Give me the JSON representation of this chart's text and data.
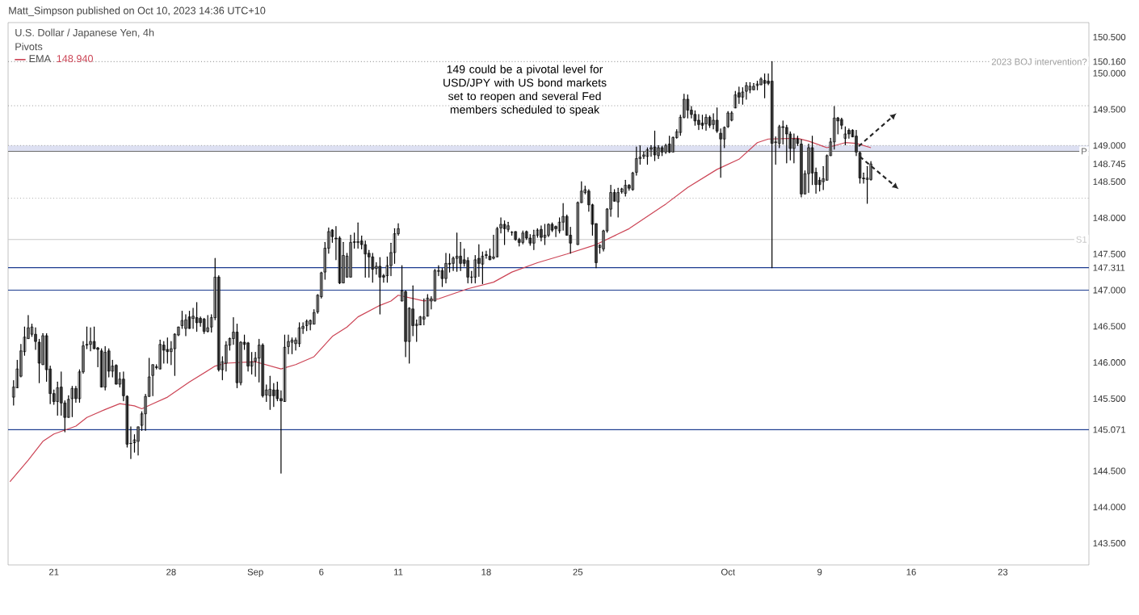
{
  "chart_data": {
    "type": "candlestick",
    "title": "U.S. Dollar / Japanese Yen, 4h",
    "subtitle": "Pivots",
    "annotations": [
      "Matt_Simpson published on Oct 10, 2023 14:36 UTC+10",
      "148.940",
      "149 could be a pivotal level for USD/JPY with US bond markets set to reopen and several Fed members scheduled to speak"
    ],
    "categories": [
      null,
      null,
      null,
      null,
      null,
      null,
      null,
      null,
      null,
      null,
      null,
      null,
      "21",
      null,
      null,
      null,
      null,
      null,
      null,
      null,
      null,
      null,
      null,
      null,
      null,
      null,
      null,
      null,
      null,
      null,
      null,
      null,
      null,
      null,
      null,
      null,
      null,
      null,
      null,
      null,
      null,
      null,
      null,
      null,
      "28",
      null,
      null,
      null,
      null,
      null,
      null,
      null,
      null,
      null,
      null,
      null,
      null,
      null,
      null,
      null,
      null,
      null,
      null,
      null,
      null,
      null,
      null,
      "Sep",
      null,
      null,
      null,
      null,
      null,
      null,
      null,
      null,
      null,
      null,
      null,
      null,
      null,
      null,
      null,
      null,
      null,
      "6",
      null,
      null,
      null,
      null,
      null,
      null,
      null,
      null,
      null,
      null,
      null,
      null,
      null,
      null,
      null,
      null,
      null,
      null,
      null,
      null,
      "11",
      null,
      null,
      null,
      null,
      null,
      null,
      null,
      null,
      null,
      null,
      null,
      null,
      null,
      null,
      null,
      null,
      null,
      null,
      null,
      null,
      null,
      null,
      null,
      "18",
      null,
      null,
      null,
      null,
      null,
      null,
      null,
      null,
      null,
      null,
      null,
      null,
      null,
      null,
      null,
      null,
      null,
      null,
      null,
      null,
      null,
      null,
      null,
      null,
      "25",
      null,
      null,
      null,
      null,
      null,
      null,
      null,
      null,
      null,
      null,
      null,
      null,
      null,
      null,
      null,
      null,
      null,
      null,
      null,
      null,
      null,
      null,
      null,
      null,
      null,
      null,
      null,
      null,
      null,
      null,
      null,
      null,
      null,
      null,
      null,
      null,
      null,
      null,
      null,
      null,
      "Oct",
      null,
      null,
      null,
      null,
      null,
      null,
      null,
      null,
      null,
      null,
      null,
      null,
      null,
      null,
      null,
      null,
      null,
      null,
      null,
      null,
      null,
      null,
      null,
      null,
      "9",
      null,
      null,
      null,
      null,
      null,
      null,
      null,
      null,
      null,
      null,
      null,
      null,
      null,
      null,
      null,
      null,
      null,
      null,
      null,
      null,
      null,
      null,
      null,
      null,
      "16",
      null,
      null,
      null,
      null,
      null,
      null,
      null,
      null,
      null,
      null,
      null,
      null,
      null,
      null,
      null,
      null,
      null,
      null,
      null,
      null,
      null,
      null,
      null,
      null,
      "23",
      null,
      null,
      null,
      null,
      null,
      null,
      null,
      null,
      null,
      null,
      null,
      null,
      null,
      null,
      null,
      null,
      null,
      null,
      null,
      null,
      null,
      null,
      null
    ],
    "ohlc": [
      null,
      [
        145.52,
        145.75,
        145.41,
        145.66
      ],
      [
        145.65,
        146.03,
        145.65,
        145.91
      ],
      [
        145.81,
        146.25,
        145.8,
        146.16
      ],
      [
        146.15,
        146.49,
        146.1,
        146.35
      ],
      [
        146.33,
        146.65,
        146.33,
        146.48
      ],
      [
        146.39,
        146.53,
        146.36,
        146.49
      ],
      [
        146.39,
        146.48,
        146.18,
        146.29
      ],
      [
        146.28,
        146.32,
        145.72,
        145.99
      ],
      [
        145.97,
        146.4,
        145.97,
        146.37
      ],
      [
        146.37,
        146.4,
        145.74,
        145.9
      ],
      [
        145.91,
        145.95,
        145.43,
        145.57
      ],
      [
        145.57,
        145.62,
        145.42,
        145.46
      ],
      [
        145.46,
        145.73,
        145.27,
        145.65
      ],
      [
        145.66,
        145.87,
        145.27,
        145.44
      ],
      [
        145.44,
        145.47,
        145.04,
        145.24
      ],
      [
        145.24,
        145.54,
        145.24,
        145.49
      ],
      [
        145.5,
        145.67,
        145.25,
        145.64
      ],
      [
        145.64,
        145.67,
        145.45,
        145.5
      ],
      [
        145.5,
        145.9,
        145.45,
        145.87
      ],
      [
        145.87,
        146.29,
        145.85,
        146.23
      ],
      [
        146.24,
        146.49,
        146.19,
        146.25
      ],
      [
        146.25,
        146.48,
        146.16,
        146.29
      ],
      [
        146.29,
        146.49,
        146.19,
        146.19
      ],
      [
        146.2,
        146.21,
        145.94,
        146.18
      ],
      [
        146.16,
        146.19,
        145.66,
        145.66
      ],
      [
        145.66,
        146.22,
        145.62,
        146.14
      ],
      [
        146.16,
        146.19,
        145.8,
        145.88
      ],
      [
        145.88,
        146.03,
        145.8,
        145.95
      ],
      [
        145.96,
        145.97,
        145.7,
        145.7
      ],
      [
        145.7,
        145.86,
        145.66,
        145.77
      ],
      [
        145.77,
        145.87,
        145.47,
        145.54
      ],
      [
        145.53,
        145.54,
        144.83,
        144.87
      ],
      [
        144.88,
        145.11,
        144.67,
        144.88
      ],
      [
        144.89,
        145.0,
        144.76,
        144.93
      ],
      [
        144.91,
        145.11,
        144.72,
        145.11
      ],
      [
        145.13,
        145.32,
        145.06,
        145.29
      ],
      [
        145.29,
        145.56,
        145.06,
        145.53
      ],
      [
        145.53,
        146.06,
        145.53,
        145.8
      ],
      [
        145.82,
        145.97,
        145.54,
        145.97
      ],
      [
        145.94,
        145.97,
        145.91,
        145.93
      ],
      [
        145.91,
        146.31,
        145.91,
        146.25
      ],
      [
        146.24,
        146.29,
        145.99,
        146.17
      ],
      [
        146.18,
        146.34,
        145.99,
        146.15
      ],
      [
        146.15,
        146.29,
        145.97,
        146.19
      ],
      [
        146.19,
        146.4,
        145.82,
        146.39
      ],
      [
        146.38,
        146.49,
        146.37,
        146.49
      ],
      [
        146.51,
        146.71,
        146.47,
        146.58
      ],
      [
        146.47,
        146.66,
        146.37,
        146.59
      ],
      [
        146.63,
        146.71,
        146.47,
        146.47
      ],
      [
        146.61,
        146.75,
        146.47,
        146.64
      ],
      [
        146.62,
        146.83,
        146.43,
        146.55
      ],
      [
        146.61,
        146.63,
        146.5,
        146.55
      ],
      [
        146.6,
        146.61,
        146.4,
        146.43
      ],
      [
        146.43,
        146.65,
        146.42,
        146.48
      ],
      [
        146.49,
        146.66,
        146.42,
        146.62
      ],
      [
        146.62,
        147.44,
        146.59,
        147.18
      ],
      [
        147.18,
        147.2,
        145.88,
        145.9
      ],
      [
        145.9,
        146.08,
        145.76,
        146.01
      ],
      [
        145.99,
        146.29,
        145.88,
        146.24
      ],
      [
        146.24,
        146.34,
        146.17,
        146.33
      ],
      [
        146.33,
        146.62,
        146.25,
        146.42
      ],
      [
        146.42,
        146.53,
        145.65,
        145.72
      ],
      [
        145.72,
        146.29,
        145.69,
        146.28
      ],
      [
        146.28,
        146.38,
        146.18,
        146.25
      ],
      [
        146.27,
        146.28,
        145.88,
        145.95
      ],
      [
        145.95,
        146.14,
        145.84,
        146.01
      ],
      [
        146.02,
        146.14,
        145.81,
        146.06
      ],
      [
        146.06,
        146.32,
        145.73,
        146.24
      ],
      [
        146.24,
        146.26,
        145.52,
        145.54
      ],
      [
        145.55,
        145.69,
        145.46,
        145.62
      ],
      [
        145.54,
        145.81,
        145.35,
        145.63
      ],
      [
        145.62,
        145.71,
        145.39,
        145.54
      ],
      [
        145.62,
        145.73,
        145.47,
        145.5
      ],
      [
        145.5,
        145.61,
        144.47,
        145.47
      ],
      [
        145.46,
        146.38,
        145.46,
        146.21
      ],
      [
        146.22,
        146.38,
        146.12,
        146.29
      ],
      [
        146.28,
        146.34,
        146.12,
        146.31
      ],
      [
        146.26,
        146.34,
        146.17,
        146.31
      ],
      [
        146.26,
        146.55,
        146.22,
        146.48
      ],
      [
        146.47,
        146.55,
        146.4,
        146.5
      ],
      [
        146.51,
        146.59,
        146.44,
        146.57
      ],
      [
        146.53,
        146.59,
        146.45,
        146.58
      ],
      [
        146.53,
        146.73,
        146.53,
        146.69
      ],
      [
        146.7,
        146.94,
        146.68,
        146.93
      ],
      [
        146.91,
        147.25,
        146.89,
        147.24
      ],
      [
        147.25,
        147.66,
        147.15,
        147.58
      ],
      [
        147.58,
        147.86,
        147.51,
        147.81
      ],
      [
        147.83,
        147.84,
        147.66,
        147.74
      ],
      [
        147.72,
        147.88,
        147.42,
        147.71
      ],
      [
        147.72,
        147.74,
        147.09,
        147.1
      ],
      [
        147.1,
        147.66,
        147.1,
        147.48
      ],
      [
        147.18,
        147.51,
        147.18,
        147.47
      ],
      [
        147.18,
        147.76,
        147.18,
        147.66
      ],
      [
        147.66,
        147.79,
        147.58,
        147.67
      ],
      [
        147.66,
        147.93,
        147.58,
        147.67
      ],
      [
        147.68,
        147.75,
        147.57,
        147.63
      ],
      [
        147.63,
        147.68,
        147.18,
        147.5
      ],
      [
        147.51,
        147.55,
        147.18,
        147.46
      ],
      [
        147.46,
        147.51,
        147.11,
        147.29
      ],
      [
        147.3,
        147.38,
        147.22,
        147.33
      ],
      [
        147.33,
        147.45,
        146.67,
        147.18
      ],
      [
        147.2,
        147.22,
        147.11,
        147.18
      ],
      [
        147.2,
        147.46,
        147.11,
        147.34
      ],
      [
        147.34,
        147.65,
        147.2,
        147.52
      ],
      [
        147.52,
        147.85,
        147.37,
        147.78
      ],
      [
        147.78,
        147.92,
        147.76,
        147.85
      ],
      [
        146.85,
        147.34,
        146.85,
        146.99
      ],
      [
        146.98,
        146.99,
        146.08,
        146.29
      ],
      [
        146.29,
        146.76,
        145.99,
        146.75
      ],
      [
        146.74,
        147.06,
        146.37,
        146.51
      ],
      [
        146.51,
        146.59,
        146.29,
        146.53
      ],
      [
        146.52,
        146.64,
        146.52,
        146.63
      ],
      [
        146.6,
        146.88,
        146.52,
        146.63
      ],
      [
        146.64,
        146.94,
        146.64,
        146.89
      ],
      [
        146.85,
        146.91,
        146.74,
        146.88
      ],
      [
        146.85,
        147.29,
        146.85,
        147.27
      ],
      [
        147.26,
        147.34,
        147.2,
        147.27
      ],
      [
        147.27,
        147.3,
        147.05,
        147.16
      ],
      [
        147.16,
        147.51,
        147.1,
        147.37
      ],
      [
        147.37,
        147.5,
        147.25,
        147.36
      ],
      [
        147.37,
        147.46,
        147.27,
        147.44
      ],
      [
        147.44,
        147.79,
        147.26,
        147.47
      ],
      [
        147.47,
        147.66,
        147.27,
        147.37
      ],
      [
        147.42,
        147.57,
        147.33,
        147.37
      ],
      [
        147.41,
        147.45,
        147.1,
        147.18
      ],
      [
        147.18,
        147.26,
        147.1,
        147.18
      ],
      [
        147.18,
        147.48,
        147.1,
        147.42
      ],
      [
        147.44,
        147.63,
        147.19,
        147.37
      ],
      [
        147.36,
        147.53,
        147.09,
        147.47
      ],
      [
        147.49,
        147.54,
        147.44,
        147.48
      ],
      [
        147.47,
        147.57,
        147.42,
        147.42
      ],
      [
        147.44,
        147.76,
        147.43,
        147.46
      ],
      [
        147.46,
        147.87,
        147.46,
        147.85
      ],
      [
        147.86,
        148.0,
        147.79,
        147.91
      ],
      [
        147.91,
        147.96,
        147.63,
        147.85
      ],
      [
        147.84,
        147.94,
        147.81,
        147.89
      ],
      [
        147.8,
        147.81,
        147.76,
        147.8
      ],
      [
        147.81,
        147.81,
        147.69,
        147.7
      ],
      [
        147.7,
        147.72,
        147.61,
        147.66
      ],
      [
        147.66,
        147.82,
        147.64,
        147.79
      ],
      [
        147.81,
        147.82,
        147.7,
        147.72
      ],
      [
        147.72,
        147.77,
        147.62,
        147.65
      ],
      [
        147.65,
        147.83,
        147.56,
        147.76
      ],
      [
        147.76,
        147.85,
        147.73,
        147.83
      ],
      [
        147.84,
        147.89,
        147.68,
        147.73
      ],
      [
        147.73,
        147.91,
        147.63,
        147.76
      ],
      [
        147.76,
        147.92,
        147.74,
        147.91
      ],
      [
        147.91,
        147.93,
        147.81,
        147.83
      ],
      [
        147.88,
        147.89,
        147.74,
        147.85
      ],
      [
        147.82,
        148.0,
        147.79,
        147.94
      ],
      [
        147.94,
        148.2,
        147.83,
        148.02
      ],
      [
        148.02,
        148.04,
        147.76,
        147.76
      ],
      [
        147.76,
        147.87,
        147.51,
        147.65
      ],
      null,
      [
        147.63,
        148.22,
        147.63,
        148.21
      ],
      [
        148.21,
        148.5,
        148.21,
        148.37
      ],
      [
        148.35,
        148.44,
        148.33,
        148.39
      ],
      [
        148.37,
        148.39,
        148.09,
        148.18
      ],
      [
        148.18,
        148.19,
        147.76,
        147.91
      ],
      [
        147.92,
        147.92,
        147.31,
        147.38
      ],
      [
        147.59,
        147.63,
        147.51,
        147.62
      ],
      [
        147.57,
        147.83,
        147.54,
        147.82
      ],
      [
        147.82,
        148.13,
        147.8,
        148.12
      ],
      [
        148.12,
        148.45,
        148.02,
        148.35
      ],
      [
        148.35,
        148.39,
        148.23,
        148.23
      ],
      [
        148.22,
        148.41,
        148.01,
        148.35
      ],
      [
        148.36,
        148.41,
        148.34,
        148.4
      ],
      [
        148.34,
        148.52,
        148.3,
        148.45
      ],
      [
        148.45,
        148.46,
        148.38,
        148.41
      ],
      [
        148.39,
        148.63,
        148.38,
        148.62
      ],
      [
        148.63,
        148.98,
        148.59,
        148.82
      ],
      [
        148.82,
        149.0,
        148.74,
        148.84
      ],
      [
        148.85,
        148.91,
        148.82,
        148.87
      ],
      [
        148.85,
        148.97,
        148.74,
        148.94
      ],
      [
        148.95,
        149.0,
        148.85,
        148.97
      ],
      [
        148.98,
        149.2,
        148.79,
        148.87
      ],
      [
        148.86,
        149.0,
        148.82,
        148.97
      ],
      [
        148.97,
        148.99,
        148.86,
        148.91
      ],
      [
        148.91,
        149.02,
        148.89,
        149.0
      ],
      [
        149.02,
        149.13,
        148.9,
        148.91
      ],
      [
        148.91,
        149.12,
        148.91,
        149.11
      ],
      [
        149.11,
        149.22,
        149.1,
        149.19
      ],
      [
        149.18,
        149.42,
        149.14,
        149.39
      ],
      [
        149.39,
        149.71,
        149.38,
        149.64
      ],
      [
        149.64,
        149.7,
        149.38,
        149.49
      ],
      [
        149.49,
        149.54,
        149.38,
        149.43
      ],
      [
        149.43,
        149.48,
        149.28,
        149.34
      ],
      [
        149.35,
        149.43,
        149.22,
        149.29
      ],
      [
        149.31,
        149.42,
        149.23,
        149.28
      ],
      [
        149.3,
        149.43,
        149.21,
        149.39
      ],
      [
        149.39,
        149.41,
        149.25,
        149.28
      ],
      [
        149.29,
        149.44,
        149.23,
        149.35
      ],
      [
        149.35,
        149.52,
        149.18,
        149.2
      ],
      [
        149.17,
        149.23,
        148.56,
        149.09
      ],
      [
        149.09,
        149.26,
        148.97,
        149.25
      ],
      [
        149.26,
        149.47,
        149.25,
        149.45
      ],
      [
        149.35,
        149.47,
        149.34,
        149.45
      ],
      [
        149.52,
        149.75,
        149.52,
        149.7
      ],
      [
        149.73,
        149.81,
        149.58,
        149.67
      ],
      [
        149.67,
        149.8,
        149.57,
        149.74
      ],
      [
        149.75,
        149.87,
        149.64,
        149.83
      ],
      [
        149.77,
        149.87,
        149.73,
        149.82
      ],
      [
        149.77,
        149.86,
        149.77,
        149.82
      ],
      [
        149.83,
        149.89,
        149.77,
        149.85
      ],
      [
        149.84,
        149.94,
        149.84,
        149.92
      ],
      [
        149.9,
        149.99,
        149.66,
        149.86
      ],
      [
        149.89,
        149.99,
        149.84,
        149.86
      ],
      [
        149.89,
        150.16,
        147.31,
        149.03
      ],
      [
        149.04,
        149.12,
        148.74,
        149.05
      ],
      [
        149.03,
        149.28,
        148.97,
        149.26
      ],
      [
        149.26,
        149.34,
        149.02,
        149.25
      ],
      [
        149.25,
        149.28,
        148.76,
        149.16
      ],
      [
        149.16,
        149.19,
        148.8,
        148.96
      ],
      [
        148.96,
        149.16,
        148.76,
        149.09
      ],
      [
        149.09,
        149.13,
        149.0,
        149.03
      ],
      [
        149.02,
        149.08,
        148.29,
        148.33
      ],
      [
        148.33,
        148.65,
        148.33,
        148.61
      ],
      [
        148.61,
        149.02,
        148.35,
        148.97
      ],
      [
        148.97,
        149.13,
        148.46,
        148.62
      ],
      [
        148.63,
        148.69,
        148.34,
        148.46
      ],
      [
        148.52,
        148.56,
        148.37,
        148.46
      ],
      [
        148.5,
        148.71,
        148.39,
        148.54
      ],
      [
        148.52,
        148.87,
        148.52,
        148.86
      ],
      [
        148.86,
        149.1,
        148.86,
        149.05
      ],
      [
        149.05,
        149.54,
        148.95,
        149.38
      ],
      [
        149.38,
        149.39,
        149.16,
        149.34
      ],
      [
        149.36,
        149.38,
        149.23,
        149.28
      ],
      [
        149.1,
        149.26,
        149.01,
        149.16
      ],
      [
        149.21,
        149.23,
        149.1,
        149.16
      ],
      [
        149.21,
        149.22,
        149.12,
        149.12
      ],
      [
        149.13,
        149.21,
        148.86,
        148.91
      ],
      [
        148.9,
        148.91,
        148.48,
        148.55
      ],
      [
        148.55,
        148.62,
        148.48,
        148.54
      ],
      [
        148.53,
        148.71,
        148.2,
        148.55
      ],
      [
        148.53,
        148.78,
        148.52,
        148.745
      ],
      null,
      null,
      null,
      null,
      null,
      null,
      null,
      null,
      null,
      null,
      null,
      null,
      null,
      null,
      null,
      null,
      null,
      null,
      null,
      null,
      null,
      null,
      null,
      null,
      null,
      null,
      null,
      null,
      null,
      null,
      null,
      null,
      null,
      null,
      null,
      null,
      null,
      null,
      null,
      null,
      null,
      null,
      null,
      null,
      null,
      null,
      null,
      null,
      null,
      null,
      null,
      null,
      null,
      null,
      null,
      null,
      null,
      null,
      null
    ],
    "series": [
      {
        "name": "EMA",
        "type": "line",
        "color": "#cc4455",
        "values": [
          144.35,
          null,
          null,
          null,
          null,
          144.65,
          null,
          null,
          null,
          144.91,
          null,
          null,
          145.01,
          null,
          null,
          null,
          null,
          null,
          145.12,
          null,
          null,
          145.24,
          null,
          null,
          null,
          null,
          145.35,
          null,
          null,
          null,
          145.43,
          null,
          null,
          null,
          145.4,
          null,
          145.36,
          null,
          null,
          145.43,
          null,
          null,
          null,
          145.52,
          null,
          null,
          null,
          null,
          null,
          145.73,
          null,
          null,
          null,
          null,
          null,
          null,
          145.95,
          null,
          null,
          145.99,
          null,
          null,
          null,
          null,
          null,
          null,
          null,
          146.01,
          null,
          null,
          null,
          null,
          null,
          null,
          145.91,
          null,
          null,
          null,
          145.97,
          null,
          null,
          null,
          null,
          146.08,
          null,
          null,
          null,
          null,
          146.36,
          null,
          null,
          null,
          146.49,
          null,
          null,
          146.63,
          null,
          null,
          null,
          null,
          null,
          146.79,
          null,
          null,
          146.85,
          null,
          146.93,
          null,
          null,
          null,
          null,
          null,
          null,
          146.85,
          null,
          null,
          null,
          146.88,
          null,
          null,
          null,
          null,
          null,
          null,
          null,
          147.02,
          null,
          null,
          null,
          null,
          null,
          null,
          147.11,
          null,
          null,
          null,
          null,
          147.25,
          null,
          null,
          null,
          null,
          null,
          null,
          147.38,
          null,
          null,
          null,
          null,
          null,
          null,
          null,
          147.5,
          null,
          null,
          null,
          null,
          null,
          null,
          null,
          147.63,
          null,
          null,
          null,
          null,
          null,
          null,
          null,
          null,
          147.85,
          null,
          null,
          null,
          null,
          null,
          null,
          null,
          null,
          null,
          148.19,
          null,
          null,
          null,
          null,
          null,
          148.42,
          null,
          null,
          null,
          null,
          null,
          null,
          null,
          148.67,
          null,
          null,
          null,
          null,
          null,
          148.81,
          null,
          null,
          null,
          null,
          149.04,
          null,
          null,
          149.09,
          null,
          null,
          null,
          null,
          null,
          null,
          null,
          149.1,
          null,
          null,
          149.06,
          null,
          null,
          null,
          null,
          148.97,
          null,
          null,
          null,
          null,
          149.04,
          null,
          null,
          149.03,
          null,
          null,
          null,
          148.97,
          null,
          null,
          null,
          null,
          null,
          null,
          null,
          null,
          null,
          null,
          null,
          null,
          null,
          null,
          null,
          null,
          null,
          null,
          null,
          null,
          null,
          null,
          null,
          null,
          null,
          null,
          null,
          null,
          null,
          null,
          null,
          null,
          null,
          null,
          null,
          null,
          null,
          null,
          null,
          null,
          null,
          null,
          null,
          null,
          null,
          null,
          null,
          null,
          null,
          null,
          null,
          null,
          null,
          null,
          null,
          null,
          null,
          null,
          null
        ]
      }
    ],
    "ylim": [
      143.2,
      150.7
    ],
    "yticks": [
      {
        "value": 143.5,
        "label": "143.500"
      },
      {
        "value": 144.0,
        "label": "144.000"
      },
      {
        "value": 144.5,
        "label": "144.500"
      },
      {
        "value": 145.071,
        "label": "145.071"
      },
      {
        "value": 145.5,
        "label": "145.500"
      },
      {
        "value": 146.0,
        "label": "146.000"
      },
      {
        "value": 146.5,
        "label": "146.500"
      },
      {
        "value": 147.0,
        "label": "147.000"
      },
      {
        "value": 147.311,
        "label": "147.311"
      },
      {
        "value": 147.5,
        "label": "147.500"
      },
      {
        "value": 148.0,
        "label": "148.000"
      },
      {
        "value": 148.5,
        "label": "148.500"
      },
      {
        "value": 148.745,
        "label": "148.745"
      },
      {
        "value": 149.0,
        "label": "149.000"
      },
      {
        "value": 149.5,
        "label": "149.500"
      },
      {
        "value": 150.0,
        "label": "150.000"
      },
      {
        "value": 150.16,
        "label": "150.160"
      },
      {
        "value": 150.5,
        "label": "150.500"
      }
    ],
    "ref_lines": [
      {
        "axis": "y",
        "value": 150.16,
        "label": "2023 BOJ intervention?",
        "color": "#9e9e9e",
        "line_style": "dotted"
      },
      {
        "axis": "y",
        "value": 149.0,
        "color": "#9e9e9e",
        "line_style": "dotted"
      },
      {
        "axis": "y",
        "value": 149.55,
        "color": "#9e9e9e",
        "line_style": "dotted"
      },
      {
        "axis": "y",
        "value": 148.27,
        "color": "#9e9e9e",
        "line_style": "dotted"
      },
      {
        "axis": "y",
        "value": 148.92,
        "label": "P",
        "color": "#6b6b6b",
        "line_style": "solid"
      },
      {
        "axis": "y",
        "value": 147.7,
        "label": "S1",
        "color": "#c8c8c8",
        "line_style": "solid"
      },
      {
        "axis": "y",
        "value": 147.311,
        "color": "#1a3a8f",
        "line_style": "solid"
      },
      {
        "axis": "y",
        "value": 147.0,
        "color": "#1a3a8f",
        "line_style": "solid"
      },
      {
        "axis": "y",
        "value": 145.071,
        "color": "#1a3a8f",
        "line_style": "solid"
      }
    ],
    "bands": [
      {
        "axis": "y",
        "from": 148.92,
        "to": 149.0,
        "color": "#dde0f2"
      }
    ],
    "legend": "top left"
  }
}
